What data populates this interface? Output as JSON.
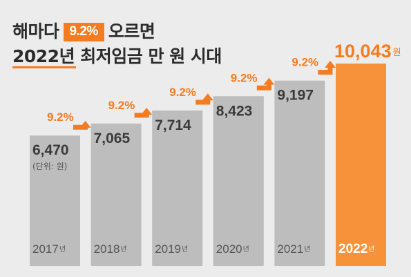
{
  "title": {
    "line1_before": "해마다",
    "line1_highlight": "9.2%",
    "line1_after": "오르면",
    "line2": "2022년 최저임금 만 원 시대"
  },
  "unit_note": "(단위: 원)",
  "year_suffix": "년",
  "value_suffix": "원",
  "colors": {
    "bar": "#bdbdbd",
    "bar_last": "#f7923a",
    "accent": "#f47b20",
    "value_text": "#3a3a3a",
    "year_text": "#555555",
    "background": "#ececec"
  },
  "chart_data": {
    "type": "bar",
    "categories": [
      "2017",
      "2018",
      "2019",
      "2020",
      "2021",
      "2022"
    ],
    "values": [
      6470,
      7065,
      7714,
      8423,
      9197,
      10043
    ],
    "value_labels": [
      "6,470",
      "7,065",
      "7,714",
      "8,423",
      "9,197",
      "10,043"
    ],
    "growth_labels": [
      "9.2%",
      "9.2%",
      "9.2%",
      "9.2%",
      "9.2%"
    ],
    "highlight_index": 5,
    "ylim": [
      0,
      10043
    ]
  }
}
